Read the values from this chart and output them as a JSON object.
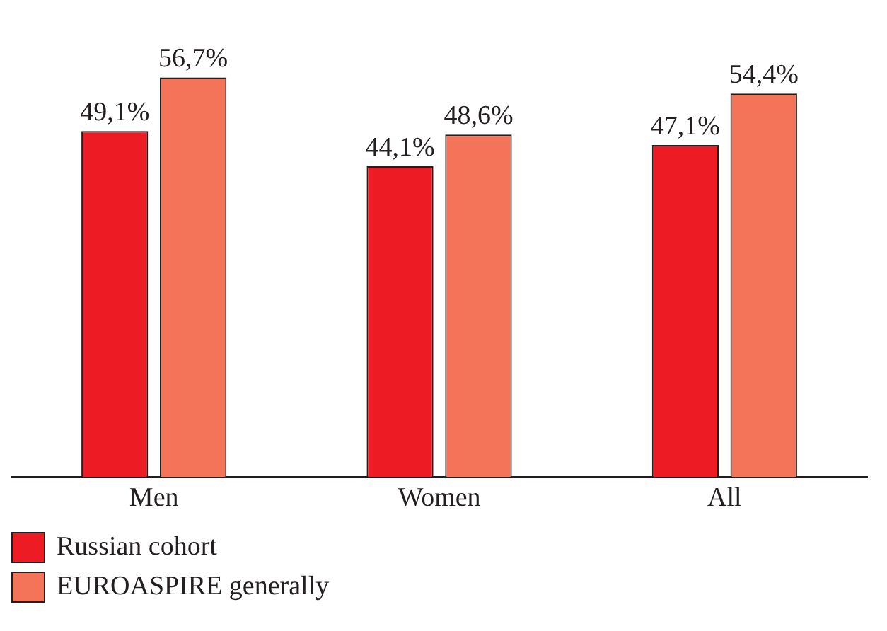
{
  "chart_data": {
    "type": "bar",
    "categories": [
      "Men",
      "Women",
      "All"
    ],
    "series": [
      {
        "name": "Russian cohort",
        "color": "#ed1c24",
        "values": [
          49.1,
          44.1,
          47.1
        ],
        "value_labels": [
          "49,1%",
          "44,1%",
          "47,1%"
        ]
      },
      {
        "name": "EUROASPIRE generally",
        "color": "#f37458",
        "values": [
          56.7,
          48.6,
          54.4
        ],
        "value_labels": [
          "56,7%",
          "48,6%",
          "54,4%"
        ]
      }
    ],
    "legend": "bottom left"
  }
}
